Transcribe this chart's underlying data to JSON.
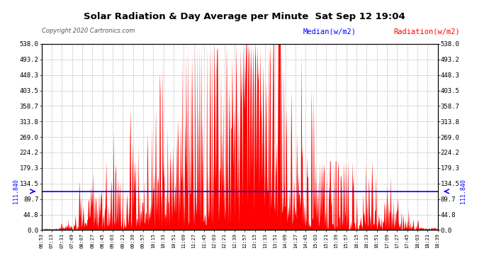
{
  "title": "Solar Radiation & Day Average per Minute  Sat Sep 12 19:04",
  "copyright": "Copyright 2020 Cartronics.com",
  "legend_median": "Median(w/m2)",
  "legend_radiation": "Radiation(w/m2)",
  "median_value": 111.84,
  "median_label": "111.840",
  "y_max": 538.0,
  "y_min": 0.0,
  "y_ticks": [
    0.0,
    44.8,
    89.7,
    134.5,
    179.3,
    224.2,
    269.0,
    313.8,
    358.7,
    403.5,
    448.3,
    493.2,
    538.0
  ],
  "y_tick_labels": [
    "0.0",
    "44.8",
    "89.7",
    "134.5",
    "179.3",
    "224.2",
    "269.0",
    "313.8",
    "358.7",
    "403.5",
    "448.3",
    "493.2",
    "538.0"
  ],
  "background_color": "#ffffff",
  "grid_color": "#bbbbbb",
  "bar_color": "#ff0000",
  "median_color": "#0000ff",
  "title_color": "#000000",
  "copyright_color": "#555555",
  "x_tick_labels": [
    "06:53",
    "07:13",
    "07:31",
    "07:49",
    "08:07",
    "08:27",
    "08:45",
    "09:03",
    "09:21",
    "09:39",
    "09:57",
    "10:15",
    "10:33",
    "10:51",
    "11:09",
    "11:27",
    "11:45",
    "12:03",
    "12:21",
    "12:39",
    "12:57",
    "13:15",
    "13:33",
    "13:51",
    "14:09",
    "14:27",
    "14:45",
    "15:03",
    "15:21",
    "15:39",
    "15:57",
    "16:15",
    "16:33",
    "16:51",
    "17:09",
    "17:27",
    "17:45",
    "18:03",
    "18:21",
    "18:39"
  ]
}
